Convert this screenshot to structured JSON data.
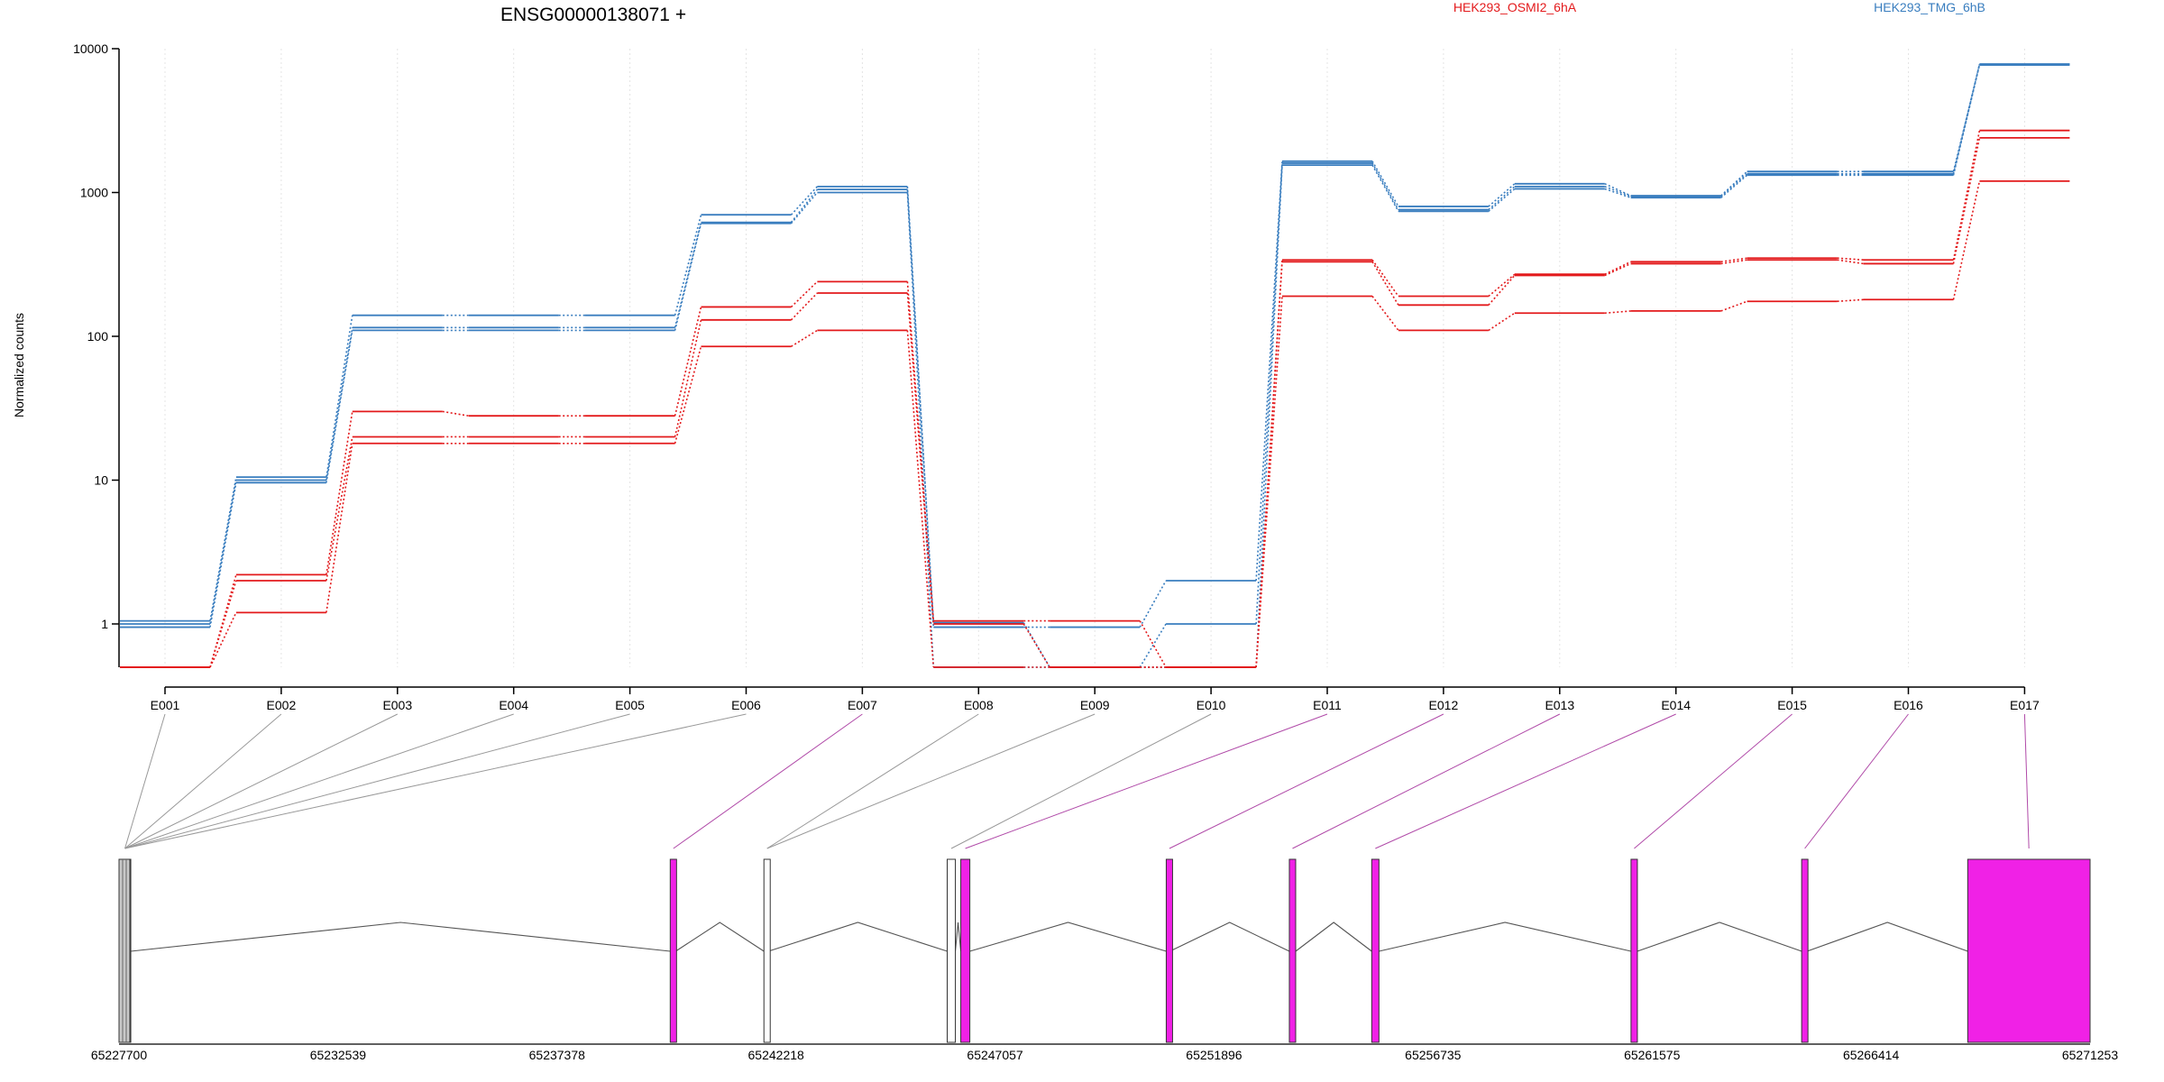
{
  "chart_data": {
    "type": "line",
    "title": "ENSG00000138071 +",
    "ylabel": "Normalized counts",
    "yscale": "log",
    "ylim": [
      0.5,
      10000
    ],
    "yticks": [
      1,
      10,
      100,
      1000,
      10000
    ],
    "ytick_labels": [
      "1",
      "10",
      "100",
      "1000",
      "10000"
    ],
    "categories": [
      "E001",
      "E002",
      "E003",
      "E004",
      "E005",
      "E006",
      "E007",
      "E008",
      "E009",
      "E010",
      "E011",
      "E012",
      "E013",
      "E014",
      "E015",
      "E016",
      "E017"
    ],
    "legend": [
      {
        "name": "HEK293_OSMI2_6hA",
        "color": "#e31a1c",
        "placement": "top-center"
      },
      {
        "name": "HEK293_TMG_6hB",
        "color": "#3a7ebf",
        "placement": "top-right"
      }
    ],
    "series": [
      {
        "group": "HEK293_TMG_6hB",
        "color": "#3a7ebf",
        "values": [
          1.05,
          10.5,
          140,
          140,
          140,
          700,
          1100,
          0.95,
          0.95,
          2.0,
          1650,
          800,
          1150,
          950,
          1400,
          1400,
          7800
        ]
      },
      {
        "group": "HEK293_TMG_6hB",
        "color": "#3a7ebf",
        "values": [
          1.0,
          10.0,
          115,
          115,
          115,
          620,
          1050,
          1.02,
          0.5,
          1.0,
          1600,
          760,
          1100,
          940,
          1350,
          1350,
          7800
        ]
      },
      {
        "group": "HEK293_TMG_6hB",
        "color": "#3a7ebf",
        "values": [
          0.95,
          9.6,
          110,
          110,
          110,
          610,
          1000,
          0.5,
          0.5,
          0.5,
          1550,
          740,
          1060,
          920,
          1320,
          1320,
          7700
        ]
      },
      {
        "group": "HEK293_OSMI2_6hA",
        "color": "#e31a1c",
        "values": [
          0.5,
          2.2,
          30,
          28,
          28,
          160,
          240,
          1.05,
          1.05,
          0.5,
          340,
          190,
          270,
          330,
          350,
          340,
          2700
        ]
      },
      {
        "group": "HEK293_OSMI2_6hA",
        "color": "#e31a1c",
        "values": [
          0.5,
          2.0,
          20,
          20,
          20,
          130,
          200,
          1.0,
          0.5,
          0.5,
          330,
          165,
          265,
          320,
          340,
          320,
          2400
        ]
      },
      {
        "group": "HEK293_OSMI2_6hA",
        "color": "#e31a1c",
        "values": [
          0.5,
          1.2,
          18,
          18,
          18,
          85,
          110,
          0.5,
          0.5,
          0.5,
          190,
          110,
          145,
          150,
          175,
          180,
          1200
        ]
      }
    ],
    "genomic_axis": {
      "tick_labels": [
        "65227700",
        "65232539",
        "65237378",
        "65242218",
        "65247057",
        "65251896",
        "65256735",
        "65261575",
        "65266414",
        "65271253"
      ],
      "min": 65227700,
      "max": 65271253
    },
    "exons": [
      {
        "id": "E001",
        "start": 65227700,
        "end": 65227960,
        "highlight": false
      },
      {
        "id": "E002",
        "start": 65227700,
        "end": 65227960,
        "highlight": false
      },
      {
        "id": "E003",
        "start": 65227700,
        "end": 65227960,
        "highlight": false
      },
      {
        "id": "E004",
        "start": 65227700,
        "end": 65227960,
        "highlight": false
      },
      {
        "id": "E005",
        "start": 65227700,
        "end": 65227960,
        "highlight": false
      },
      {
        "id": "E006",
        "start": 65227700,
        "end": 65227960,
        "highlight": false
      },
      {
        "id": "E007",
        "start": 65239880,
        "end": 65240000,
        "highlight": true
      },
      {
        "id": "E008",
        "start": 65241950,
        "end": 65242050,
        "highlight": false
      },
      {
        "id": "E009",
        "start": 65241950,
        "end": 65242050,
        "highlight": false
      },
      {
        "id": "E010",
        "start": 65246000,
        "end": 65246180,
        "highlight": false
      },
      {
        "id": "E011",
        "start": 65246300,
        "end": 65246500,
        "highlight": true
      },
      {
        "id": "E012",
        "start": 65250840,
        "end": 65250920,
        "highlight": true
      },
      {
        "id": "E013",
        "start": 65253560,
        "end": 65253700,
        "highlight": true
      },
      {
        "id": "E014",
        "start": 65255380,
        "end": 65255540,
        "highlight": true
      },
      {
        "id": "E015",
        "start": 65261110,
        "end": 65261250,
        "highlight": true
      },
      {
        "id": "E016",
        "start": 65264880,
        "end": 65265000,
        "highlight": true
      },
      {
        "id": "E017",
        "start": 65268550,
        "end": 65271253,
        "highlight": true
      }
    ]
  }
}
